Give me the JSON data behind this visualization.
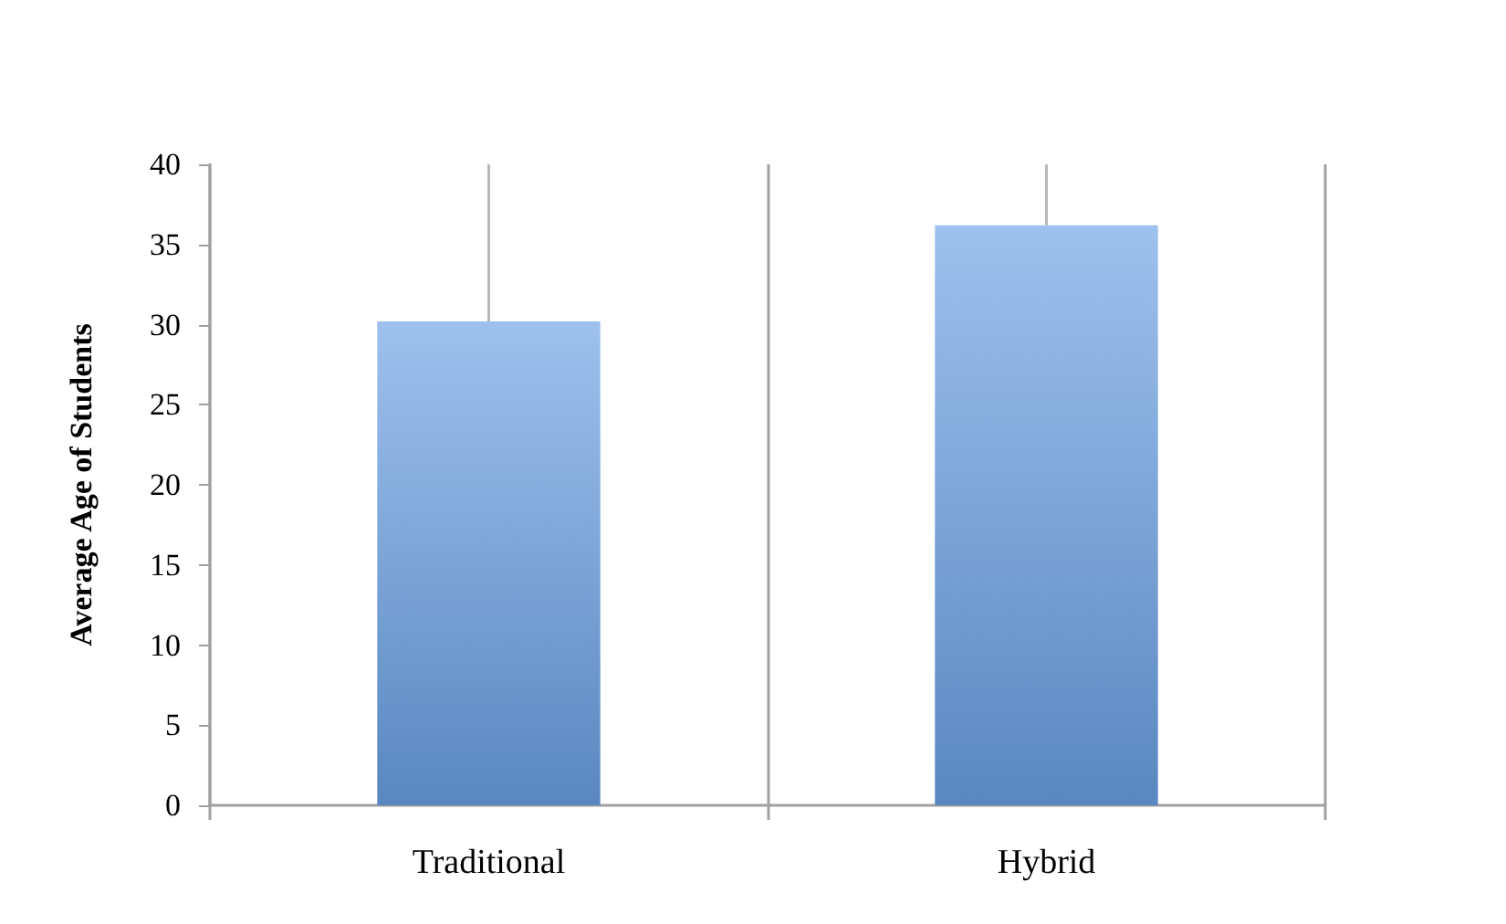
{
  "chart_data": {
    "type": "bar",
    "ylabel": "Average Age of Students",
    "categories": [
      "Traditional",
      "Hybrid"
    ],
    "values": [
      30.2,
      36.2
    ],
    "errors": [
      [
        30.2,
        40
      ],
      [
        36.2,
        40
      ]
    ],
    "color": "#6a9fe3",
    "ylim": [
      0,
      40
    ],
    "yticks": [
      0,
      5,
      10,
      15,
      20,
      25,
      30,
      35,
      40
    ],
    "grid": "x"
  }
}
